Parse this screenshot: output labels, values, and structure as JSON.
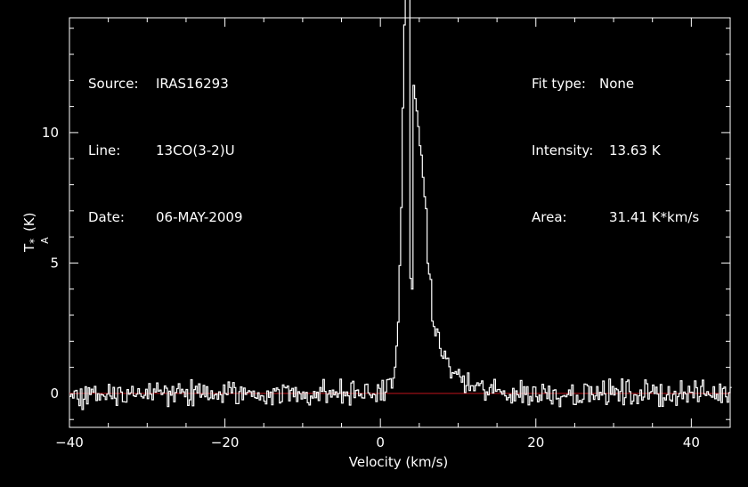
{
  "chart_data": {
    "type": "line",
    "xlabel": "Velocity (km/s)",
    "ylabel": "T",
    "ylabel_sub": "A",
    "ylabel_sup": "*",
    "ylabel_unit": "(K)",
    "xlim": [
      -40,
      45
    ],
    "ylim": [
      -1.3,
      14.4
    ],
    "x_ticks": [
      -40,
      -20,
      0,
      20,
      40
    ],
    "x_tick_labels": [
      "−40",
      "−20",
      "0",
      "20",
      "40"
    ],
    "y_ticks": [
      0,
      5,
      10
    ],
    "y_tick_labels": [
      "0",
      "5",
      "10"
    ],
    "baseline": 0,
    "colors": {
      "spectrum": "#ffffff",
      "baseline": "#c0141e",
      "axes": "#ffffff",
      "background": "#000000"
    },
    "channel_width_kms": 0.1,
    "noise_rms_K": 0.25,
    "peaks": [
      {
        "velocity_kms": 3.3,
        "intensity_K": 13.63
      },
      {
        "velocity_kms": 4.8,
        "intensity_K": 7.6
      }
    ],
    "absorption_dip_velocity_kms": 3.9,
    "grid": false,
    "legend": "none"
  },
  "header": {
    "source_label": "Source:",
    "source_value": "IRAS16293",
    "line_label": "Line:",
    "line_value": "13CO(3-2)U",
    "date_label": "Date:",
    "date_value": "06-MAY-2009",
    "fit_label": "Fit type:",
    "fit_value": "None",
    "intensity_label": "Intensity:",
    "intensity_value": "13.63 K",
    "area_label": "Area:",
    "area_value": "31.41 K*km/s"
  }
}
